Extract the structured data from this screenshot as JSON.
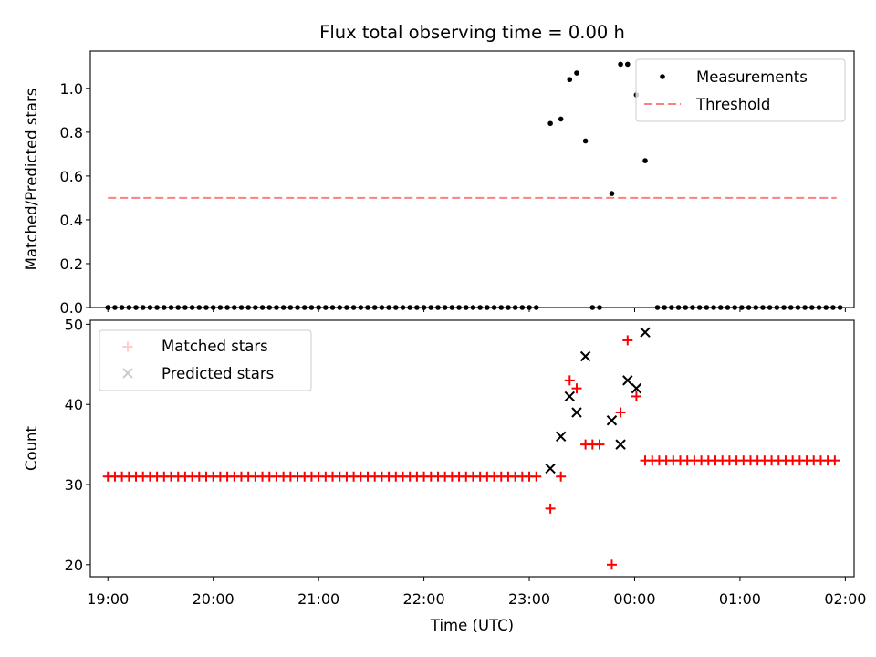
{
  "chart_data": [
    {
      "type": "scatter",
      "title": "Flux total observing time = 0.00 h",
      "xlabel": "",
      "ylabel": "Matched/Predicted stars",
      "xlim": [
        "18:50",
        "02:05"
      ],
      "ylim": [
        0.0,
        1.17
      ],
      "x_ticks": [
        "19:00",
        "20:00",
        "21:00",
        "22:00",
        "23:00",
        "00:00",
        "01:00",
        "02:00"
      ],
      "x_tick_labels_visible": false,
      "y_ticks": [
        "0.0",
        "0.2",
        "0.4",
        "0.6",
        "0.8",
        "1.0"
      ],
      "legend": {
        "placement": "top-right",
        "entries": [
          "Measurements",
          "Threshold"
        ]
      },
      "colors": {
        "measurements": "#000000",
        "threshold": "#ff7f7f"
      },
      "series": [
        {
          "name": "Measurements",
          "marker": "dot",
          "zero_times_before": {
            "start": "19:00",
            "end": "23:06",
            "step_minutes": 4,
            "value": 0.0
          },
          "points": [
            {
              "x": "23:12",
              "y": 0.84
            },
            {
              "x": "23:18",
              "y": 0.86
            },
            {
              "x": "23:23",
              "y": 1.04
            },
            {
              "x": "23:27",
              "y": 1.07
            },
            {
              "x": "23:32",
              "y": 0.76
            },
            {
              "x": "23:36",
              "y": 0.0
            },
            {
              "x": "23:40",
              "y": 0.0
            },
            {
              "x": "23:47",
              "y": 0.52
            },
            {
              "x": "23:52",
              "y": 1.11
            },
            {
              "x": "23:56",
              "y": 1.11
            },
            {
              "x": "00:01",
              "y": 0.97
            },
            {
              "x": "00:06",
              "y": 0.67
            }
          ],
          "zero_times_after": {
            "start": "00:13",
            "end": "01:57",
            "step_minutes": 4,
            "value": 0.0
          }
        },
        {
          "name": "Threshold",
          "line_style": "dashed",
          "x": [
            "19:00",
            "01:55"
          ],
          "y": [
            0.5,
            0.5
          ]
        }
      ]
    },
    {
      "type": "scatter",
      "title": "",
      "xlabel": "Time (UTC)",
      "ylabel": "Count",
      "xlim": [
        "18:50",
        "02:05"
      ],
      "ylim": [
        18.5,
        50.5
      ],
      "x_ticks": [
        "19:00",
        "20:00",
        "21:00",
        "22:00",
        "23:00",
        "00:00",
        "01:00",
        "02:00"
      ],
      "y_ticks": [
        "20",
        "30",
        "40",
        "50"
      ],
      "legend": {
        "placement": "top-left",
        "entries": [
          "Matched stars",
          "Predicted stars"
        ]
      },
      "colors": {
        "matched": "#ff0000",
        "predicted": "#000000"
      },
      "series": [
        {
          "name": "Matched stars",
          "marker": "plus",
          "run_before": {
            "start": "19:00",
            "end": "23:06",
            "step_minutes": 4,
            "value": 31
          },
          "points": [
            {
              "x": "23:12",
              "y": 27
            },
            {
              "x": "23:18",
              "y": 31
            },
            {
              "x": "23:23",
              "y": 43
            },
            {
              "x": "23:27",
              "y": 42
            },
            {
              "x": "23:32",
              "y": 35
            },
            {
              "x": "23:36",
              "y": 35
            },
            {
              "x": "23:40",
              "y": 35
            },
            {
              "x": "23:47",
              "y": 20
            },
            {
              "x": "23:52",
              "y": 39
            },
            {
              "x": "23:56",
              "y": 48
            },
            {
              "x": "00:01",
              "y": 41
            }
          ],
          "run_after": {
            "start": "00:06",
            "end": "01:57",
            "step_minutes": 4,
            "value": 33
          }
        },
        {
          "name": "Predicted stars",
          "marker": "x",
          "points": [
            {
              "x": "23:12",
              "y": 32
            },
            {
              "x": "23:18",
              "y": 36
            },
            {
              "x": "23:23",
              "y": 41
            },
            {
              "x": "23:27",
              "y": 39
            },
            {
              "x": "23:32",
              "y": 46
            },
            {
              "x": "23:47",
              "y": 38
            },
            {
              "x": "23:52",
              "y": 35
            },
            {
              "x": "23:56",
              "y": 43
            },
            {
              "x": "00:01",
              "y": 42
            },
            {
              "x": "00:06",
              "y": 49
            }
          ]
        }
      ]
    }
  ]
}
